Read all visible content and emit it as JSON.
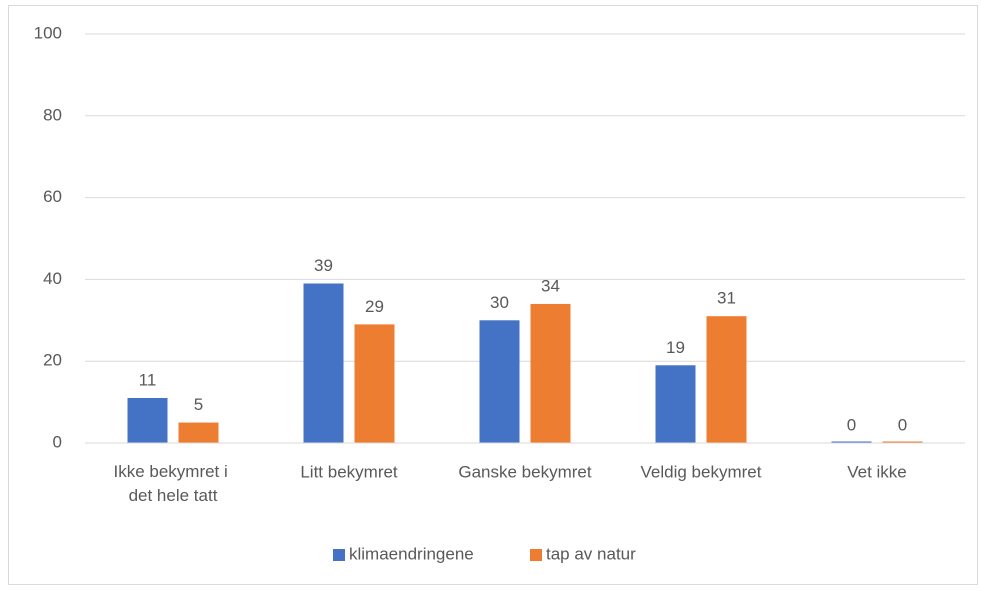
{
  "chart_data": {
    "type": "bar",
    "categories": [
      "Ikke bekymret i det hele tatt",
      "Litt bekymret",
      "Ganske bekymret",
      "Veldig bekymret",
      "Vet ikke"
    ],
    "series": [
      {
        "name": "klimaendringene",
        "color": "#4472c4",
        "values": [
          11,
          39,
          30,
          19,
          0
        ]
      },
      {
        "name": "tap av natur",
        "color": "#ed7d31",
        "values": [
          5,
          29,
          34,
          31,
          0
        ]
      }
    ],
    "ylim": [
      0,
      100
    ],
    "yticks": [
      0,
      20,
      40,
      60,
      80,
      100
    ],
    "grid": true,
    "legend": "bottom"
  }
}
